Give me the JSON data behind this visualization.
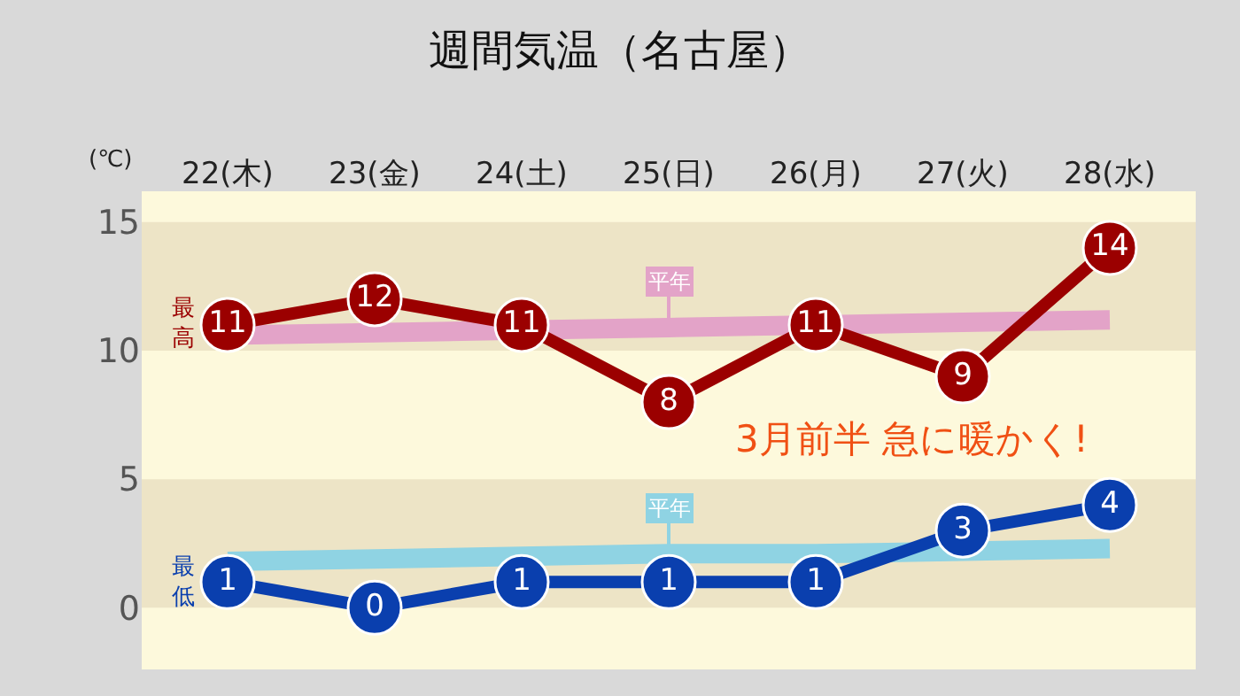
{
  "chart_data": {
    "type": "line",
    "title": "週間気温（名古屋）",
    "ylabel": "(℃)",
    "categories": [
      "22(木)",
      "23(金)",
      "24(土)",
      "25(日)",
      "26(月)",
      "27(火)",
      "28(水)"
    ],
    "series": [
      {
        "name": "平年",
        "color": "#e3a3c8",
        "marker": "none",
        "values": [
          10.6,
          10.7,
          10.8,
          10.9,
          11.0,
          11.1,
          11.2
        ]
      },
      {
        "name": "平年",
        "color": "#8fd3e3",
        "marker": "none",
        "values": [
          1.8,
          1.9,
          2.0,
          2.1,
          2.1,
          2.2,
          2.3
        ]
      },
      {
        "name": "最高",
        "color": "#9b0000",
        "marker": "circle",
        "values": [
          11,
          12,
          11,
          8,
          11,
          9,
          14
        ],
        "value_labels": [
          "11",
          "12",
          "11",
          "8",
          "11",
          "9",
          "14"
        ]
      },
      {
        "name": "最低",
        "color": "#0a3fae",
        "marker": "circle",
        "values": [
          1,
          0,
          1,
          1,
          1,
          3,
          4
        ],
        "value_labels": [
          "1",
          "0",
          "1",
          "1",
          "1",
          "3",
          "4"
        ]
      }
    ],
    "ylim": [
      -2.4,
      16.2
    ],
    "yticks": [
      0,
      5,
      10,
      15
    ],
    "bands": [
      {
        "axis": "y",
        "from": 10,
        "to": 15,
        "color": "#ede4c6"
      },
      {
        "axis": "y",
        "from": 0,
        "to": 5,
        "color": "#ede4c6"
      }
    ],
    "annotations": [
      "3月前半 急に暖かく!"
    ],
    "line_style": "solid"
  }
}
